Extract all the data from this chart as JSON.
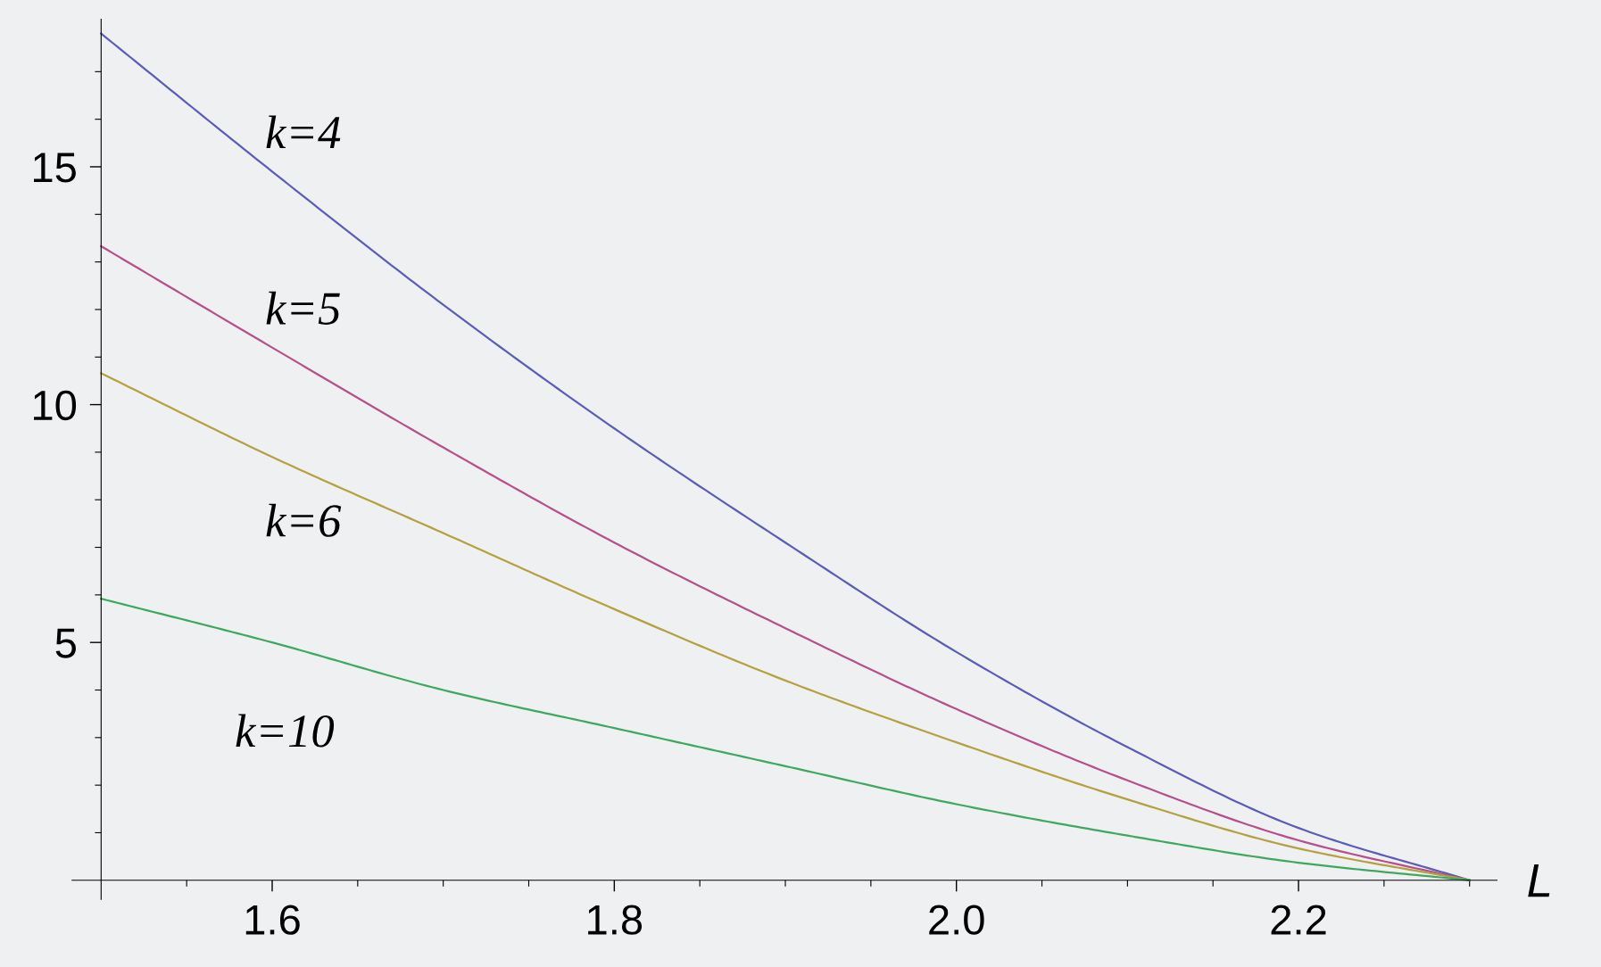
{
  "chart_data": {
    "type": "line",
    "xlabel": "L",
    "x": [
      1.5,
      1.6,
      1.7,
      1.8,
      1.9,
      2.0,
      2.1,
      2.2,
      2.3
    ],
    "series": [
      {
        "name": "k=4",
        "color": "#5a5cb8",
        "values": [
          17.8,
          14.9,
          12.1,
          9.5,
          7.1,
          4.8,
          2.8,
          1.1,
          0
        ]
      },
      {
        "name": "k=5",
        "color": "#b5508c",
        "values": [
          13.33,
          11.2,
          9.1,
          7.1,
          5.3,
          3.6,
          2.1,
          0.84,
          0
        ]
      },
      {
        "name": "k=6",
        "color": "#b5a040",
        "values": [
          10.66,
          8.9,
          7.3,
          5.7,
          4.2,
          2.9,
          1.7,
          0.67,
          0
        ]
      },
      {
        "name": "k=10",
        "color": "#3fa860",
        "values": [
          5.92,
          5.0,
          4.0,
          3.2,
          2.4,
          1.6,
          0.94,
          0.37,
          0
        ]
      }
    ],
    "xlim": [
      1.483,
      2.316
    ],
    "ylim": [
      -0.4,
      18.1
    ],
    "xticks": [
      1.6,
      1.8,
      {
        "value": 2.0,
        "label": "2.0"
      },
      2.2
    ],
    "yticks": [
      5,
      10,
      15
    ],
    "grid": false,
    "legend": false,
    "marker": "none",
    "line_style": "solid"
  }
}
